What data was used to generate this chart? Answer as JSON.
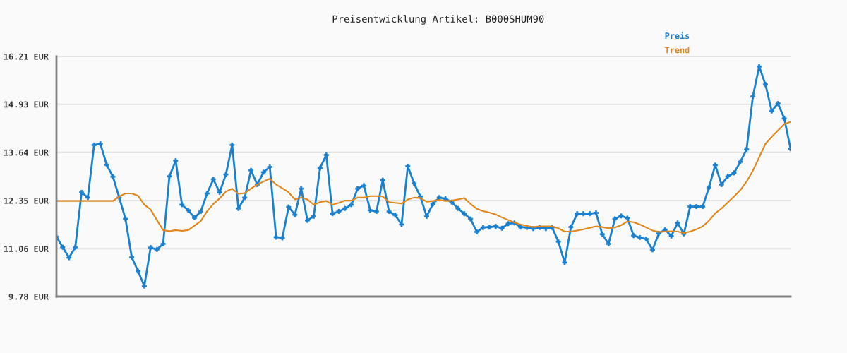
{
  "chart_data": {
    "type": "line",
    "title": "Preisentwicklung Artikel: B000SHUM90",
    "categories": [
      null,
      null,
      null,
      null,
      null,
      null,
      null,
      null,
      null,
      null,
      null,
      null,
      null,
      null,
      null,
      null,
      null,
      null,
      null,
      null,
      null,
      null,
      null,
      null,
      null,
      null,
      null,
      null,
      null,
      null,
      null,
      null,
      null,
      null,
      null,
      null,
      null,
      null,
      null,
      null,
      null,
      null,
      null,
      null,
      null,
      null,
      null,
      null,
      null,
      null,
      null,
      null,
      null,
      null,
      null,
      null,
      null,
      null,
      null,
      null,
      null,
      null,
      null,
      null,
      null,
      null,
      null,
      null,
      null,
      null,
      null,
      null,
      null,
      null,
      null,
      null,
      null,
      null,
      null,
      null,
      null,
      null,
      null,
      null,
      null,
      null,
      null,
      null,
      null,
      null,
      null,
      null,
      null,
      null,
      null,
      null,
      null,
      null,
      null,
      null,
      null,
      null,
      null,
      null,
      null,
      null,
      null,
      null,
      null,
      null,
      null,
      null,
      null,
      null,
      null,
      null,
      null,
      null
    ],
    "series": [
      {
        "name": "Preis",
        "color": "#1a80d0",
        "marker": "cross",
        "values": [
          11.38,
          11.1,
          10.82,
          11.1,
          12.57,
          12.43,
          13.84,
          13.87,
          13.31,
          12.99,
          12.43,
          11.86,
          10.83,
          10.46,
          10.06,
          11.09,
          11.04,
          11.19,
          13.0,
          13.42,
          12.24,
          12.09,
          11.89,
          12.06,
          12.54,
          12.92,
          12.57,
          13.05,
          13.84,
          12.14,
          12.43,
          13.16,
          12.78,
          13.11,
          13.25,
          11.37,
          11.35,
          12.18,
          11.97,
          12.67,
          11.82,
          11.93,
          13.22,
          13.57,
          12.0,
          12.06,
          12.14,
          12.24,
          12.67,
          12.75,
          12.09,
          12.06,
          12.9,
          12.06,
          11.96,
          11.71,
          13.27,
          12.81,
          12.46,
          11.93,
          12.26,
          12.43,
          12.4,
          12.31,
          12.14,
          12.0,
          11.86,
          11.51,
          11.63,
          11.64,
          11.66,
          11.61,
          11.73,
          11.75,
          11.64,
          11.63,
          11.6,
          11.63,
          11.6,
          11.63,
          11.25,
          10.69,
          11.64,
          12.0,
          12.0,
          12.0,
          12.02,
          11.45,
          11.19,
          11.86,
          11.94,
          11.88,
          11.41,
          11.36,
          11.32,
          11.03,
          11.47,
          11.57,
          11.4,
          11.75,
          11.46,
          12.19,
          12.19,
          12.19,
          12.7,
          13.3,
          12.78,
          13.0,
          13.09,
          13.39,
          13.72,
          15.14,
          15.94,
          15.46,
          14.75,
          14.95,
          14.55,
          13.74
        ]
      },
      {
        "name": "Trend",
        "color": "#e0861a",
        "values": [
          12.34,
          12.34,
          12.34,
          12.34,
          12.34,
          12.34,
          12.34,
          12.34,
          12.34,
          12.34,
          12.46,
          12.54,
          12.54,
          12.48,
          12.24,
          12.11,
          11.83,
          11.56,
          11.53,
          11.56,
          11.54,
          11.56,
          11.68,
          11.8,
          12.06,
          12.26,
          12.41,
          12.59,
          12.67,
          12.53,
          12.55,
          12.67,
          12.78,
          12.86,
          12.94,
          12.78,
          12.68,
          12.57,
          12.38,
          12.43,
          12.38,
          12.24,
          12.31,
          12.34,
          12.24,
          12.29,
          12.35,
          12.35,
          12.43,
          12.43,
          12.47,
          12.47,
          12.46,
          12.31,
          12.29,
          12.27,
          12.38,
          12.43,
          12.42,
          12.32,
          12.34,
          12.37,
          12.34,
          12.35,
          12.38,
          12.42,
          12.26,
          12.13,
          12.07,
          12.03,
          11.98,
          11.9,
          11.83,
          11.76,
          11.71,
          11.67,
          11.64,
          11.66,
          11.66,
          11.66,
          11.61,
          11.52,
          11.52,
          11.55,
          11.58,
          11.62,
          11.66,
          11.64,
          11.61,
          11.63,
          11.69,
          11.79,
          11.77,
          11.71,
          11.63,
          11.55,
          11.51,
          11.52,
          11.53,
          11.52,
          11.48,
          11.52,
          11.58,
          11.66,
          11.81,
          12.01,
          12.14,
          12.3,
          12.46,
          12.63,
          12.86,
          13.15,
          13.51,
          13.87,
          14.06,
          14.23,
          14.4,
          14.46
        ]
      }
    ],
    "ylim": [
      9.78,
      16.21
    ],
    "yticks": [
      {
        "value": 9.78,
        "label": "9.78 EUR"
      },
      {
        "value": 11.06,
        "label": "11.06 EUR"
      },
      {
        "value": 12.35,
        "label": "12.35 EUR"
      },
      {
        "value": 13.64,
        "label": "13.64 EUR"
      },
      {
        "value": 14.93,
        "label": "14.93 EUR"
      },
      {
        "value": 16.21,
        "label": "16.21 EUR"
      }
    ],
    "grid": "y",
    "legend": "top right",
    "tick_labels": "y",
    "line_style": "solid"
  }
}
